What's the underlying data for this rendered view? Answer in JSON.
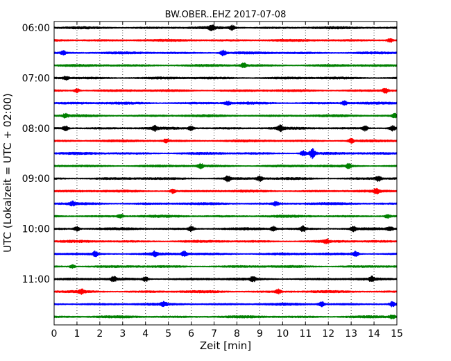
{
  "chart_data": {
    "type": "line",
    "title": "BW.OBER..EHZ 2017-07-08",
    "xlabel": "Zeit  [min]",
    "ylabel": "UTC (Lokalzeit = UTC + 02:00)",
    "xlim": [
      0,
      15
    ],
    "x_ticks": [
      "0",
      "1",
      "2",
      "3",
      "4",
      "5",
      "6",
      "7",
      "8",
      "9",
      "10",
      "11",
      "12",
      "13",
      "14",
      "15"
    ],
    "y_ticks": [
      "06:00",
      "07:00",
      "08:00",
      "09:00",
      "10:00",
      "11:00"
    ],
    "grid": "vertical dotted lines at each minute",
    "traces_per_hour": 4,
    "colors": [
      "#000000",
      "#ff0000",
      "#0000ff",
      "#008000"
    ],
    "rows": [
      {
        "start": "06:00",
        "color": "#000000",
        "events": [
          [
            6.9,
            1.8
          ],
          [
            7.8,
            1.4
          ]
        ]
      },
      {
        "start": "06:15",
        "color": "#ff0000",
        "events": [
          [
            14.7,
            1.2
          ]
        ]
      },
      {
        "start": "06:30",
        "color": "#0000ff",
        "events": [
          [
            7.4,
            1.8
          ],
          [
            0.4,
            1.1
          ]
        ]
      },
      {
        "start": "06:45",
        "color": "#008000",
        "events": [
          [
            8.3,
            1.3
          ]
        ]
      },
      {
        "start": "07:00",
        "color": "#000000",
        "events": [
          [
            0.5,
            1.0
          ]
        ]
      },
      {
        "start": "07:15",
        "color": "#ff0000",
        "events": [
          [
            14.5,
            1.6
          ],
          [
            1.0,
            1.2
          ]
        ]
      },
      {
        "start": "07:30",
        "color": "#0000ff",
        "events": [
          [
            7.6,
            1.1
          ],
          [
            12.7,
            1.2
          ]
        ]
      },
      {
        "start": "07:45",
        "color": "#008000",
        "events": [
          [
            0.5,
            1.2
          ],
          [
            14.9,
            1.2
          ]
        ]
      },
      {
        "start": "08:00",
        "color": "#000000",
        "events": [
          [
            0.5,
            1.5
          ],
          [
            4.4,
            1.4
          ],
          [
            6.0,
            1.4
          ],
          [
            9.9,
            1.6
          ],
          [
            13.6,
            1.5
          ],
          [
            14.8,
            1.6
          ]
        ]
      },
      {
        "start": "08:15",
        "color": "#ff0000",
        "events": [
          [
            4.9,
            1.2
          ],
          [
            13.0,
            1.2
          ]
        ]
      },
      {
        "start": "08:30",
        "color": "#0000ff",
        "events": [
          [
            11.3,
            3.4
          ],
          [
            10.9,
            1.5
          ]
        ]
      },
      {
        "start": "08:45",
        "color": "#008000",
        "events": [
          [
            6.4,
            1.5
          ],
          [
            12.9,
            1.3
          ]
        ]
      },
      {
        "start": "09:00",
        "color": "#000000",
        "events": [
          [
            7.6,
            1.7
          ],
          [
            9.0,
            1.5
          ],
          [
            14.2,
            1.6
          ]
        ]
      },
      {
        "start": "09:15",
        "color": "#ff0000",
        "events": [
          [
            5.2,
            1.3
          ],
          [
            14.1,
            1.4
          ]
        ]
      },
      {
        "start": "09:30",
        "color": "#0000ff",
        "events": [
          [
            9.7,
            1.3
          ],
          [
            0.8,
            1.2
          ]
        ]
      },
      {
        "start": "09:45",
        "color": "#008000",
        "events": [
          [
            2.9,
            1.2
          ],
          [
            14.6,
            1.1
          ]
        ]
      },
      {
        "start": "10:00",
        "color": "#000000",
        "events": [
          [
            1.0,
            1.4
          ],
          [
            6.0,
            1.7
          ],
          [
            9.6,
            1.5
          ],
          [
            10.9,
            1.7
          ],
          [
            13.1,
            1.5
          ],
          [
            14.7,
            1.3
          ]
        ]
      },
      {
        "start": "10:15",
        "color": "#ff0000",
        "events": [
          [
            11.9,
            1.2
          ]
        ]
      },
      {
        "start": "10:30",
        "color": "#0000ff",
        "events": [
          [
            1.8,
            1.6
          ],
          [
            4.4,
            1.4
          ],
          [
            5.7,
            1.6
          ],
          [
            13.2,
            1.5
          ]
        ]
      },
      {
        "start": "10:45",
        "color": "#008000",
        "events": [
          [
            0.8,
            1.1
          ]
        ]
      },
      {
        "start": "11:00",
        "color": "#000000",
        "events": [
          [
            2.6,
            1.5
          ],
          [
            4.0,
            1.4
          ],
          [
            8.7,
            1.4
          ],
          [
            13.9,
            1.4
          ]
        ]
      },
      {
        "start": "11:15",
        "color": "#ff0000",
        "events": [
          [
            1.2,
            1.3
          ],
          [
            9.8,
            1.3
          ]
        ]
      },
      {
        "start": "11:30",
        "color": "#0000ff",
        "events": [
          [
            11.7,
            1.6
          ],
          [
            14.8,
            1.4
          ],
          [
            4.8,
            1.2
          ]
        ]
      },
      {
        "start": "11:45",
        "color": "#008000",
        "events": [
          [
            14.8,
            1.1
          ]
        ]
      }
    ]
  }
}
